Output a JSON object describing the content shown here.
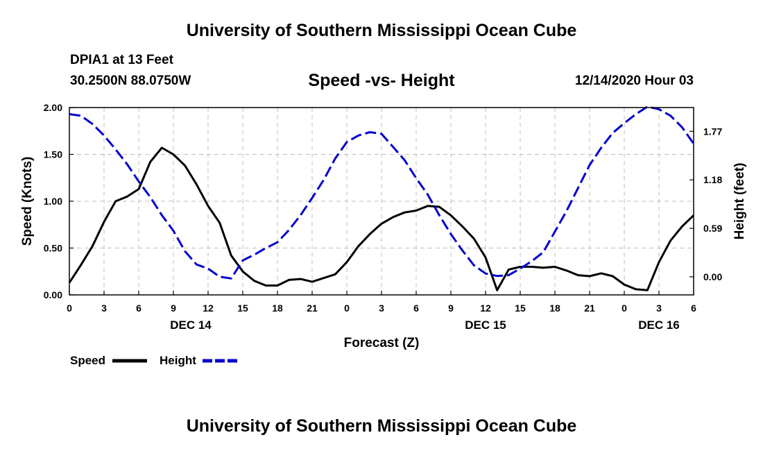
{
  "header": {
    "top_title": "University of Southern Mississippi Ocean Cube",
    "station": "DPIA1 at 13 Feet",
    "coords": "30.2500N 88.0750W",
    "chart_title": "Speed -vs- Height",
    "datetime": "12/14/2020 Hour 03",
    "bottom_title": "University of Southern Mississippi Ocean Cube"
  },
  "chart_data": {
    "type": "line",
    "title": "Speed -vs- Height",
    "xlabel": "Forecast (Z)",
    "ylabel": "Speed (Knots)",
    "y2label": "Height (feet)",
    "xlim": [
      0,
      54
    ],
    "ylim": [
      0,
      2
    ],
    "y2lim": [
      -0.22,
      2.06
    ],
    "grid": true,
    "x_ticks": [
      0,
      3,
      6,
      9,
      12,
      15,
      18,
      21,
      24,
      27,
      30,
      33,
      36,
      39,
      42,
      45,
      48,
      51,
      54
    ],
    "x_tick_labels": [
      "0",
      "3",
      "6",
      "9",
      "12",
      "15",
      "18",
      "21",
      "0",
      "3",
      "6",
      "9",
      "12",
      "15",
      "18",
      "21",
      "0",
      "3",
      "6"
    ],
    "y_ticks": [
      0,
      0.5,
      1.0,
      1.5,
      2.0
    ],
    "y_tick_labels": [
      "0.00",
      "0.50",
      "1.00",
      "1.50",
      "2.00"
    ],
    "y2_ticks": [
      0,
      0.59,
      1.18,
      1.77
    ],
    "y2_tick_labels": [
      "0.00",
      "0.59",
      "1.18",
      "1.77"
    ],
    "day_labels": [
      {
        "x": 10.5,
        "label": "DEC 14"
      },
      {
        "x": 36,
        "label": "DEC 15"
      },
      {
        "x": 51,
        "label": "DEC 16"
      }
    ],
    "legend_position": "bottom-left",
    "series": [
      {
        "name": "Speed",
        "axis": "left",
        "color": "#000000",
        "dash": "solid",
        "x": [
          0,
          1,
          2,
          3,
          4,
          5,
          6,
          7,
          8,
          9,
          10,
          11,
          12,
          13,
          14,
          15,
          16,
          17,
          18,
          19,
          20,
          21,
          22,
          23,
          24,
          25,
          26,
          27,
          28,
          29,
          30,
          31,
          32,
          33,
          34,
          35,
          36,
          37,
          38,
          39,
          40,
          41,
          42,
          43,
          44,
          45,
          46,
          47,
          48,
          49,
          50,
          51,
          52,
          53,
          54
        ],
        "values": [
          0.13,
          0.32,
          0.52,
          0.78,
          1.0,
          1.05,
          1.13,
          1.42,
          1.57,
          1.5,
          1.38,
          1.18,
          0.95,
          0.77,
          0.42,
          0.25,
          0.15,
          0.1,
          0.1,
          0.16,
          0.17,
          0.14,
          0.18,
          0.22,
          0.35,
          0.52,
          0.65,
          0.76,
          0.83,
          0.88,
          0.9,
          0.95,
          0.94,
          0.85,
          0.73,
          0.6,
          0.4,
          0.05,
          0.27,
          0.3,
          0.3,
          0.29,
          0.3,
          0.26,
          0.21,
          0.2,
          0.23,
          0.2,
          0.11,
          0.06,
          0.05,
          0.35,
          0.58,
          0.73,
          0.85
        ]
      },
      {
        "name": "Height",
        "axis": "right",
        "color": "#0000cc",
        "dash": "dashed",
        "x": [
          0,
          1,
          2,
          3,
          4,
          5,
          6,
          7,
          8,
          9,
          10,
          11,
          12,
          13,
          14,
          15,
          16,
          17,
          18,
          19,
          20,
          21,
          22,
          23,
          24,
          25,
          26,
          27,
          28,
          29,
          30,
          31,
          32,
          33,
          34,
          35,
          36,
          37,
          38,
          39,
          40,
          41,
          42,
          43,
          44,
          45,
          46,
          47,
          48,
          49,
          50,
          51,
          52,
          53,
          54
        ],
        "values": [
          1.98,
          1.96,
          1.86,
          1.72,
          1.55,
          1.37,
          1.16,
          0.97,
          0.75,
          0.56,
          0.31,
          0.15,
          0.1,
          0.0,
          -0.02,
          0.2,
          0.27,
          0.35,
          0.42,
          0.57,
          0.75,
          0.96,
          1.18,
          1.44,
          1.64,
          1.72,
          1.76,
          1.74,
          1.58,
          1.42,
          1.2,
          1.0,
          0.75,
          0.52,
          0.32,
          0.14,
          0.04,
          0.01,
          0.02,
          0.1,
          0.19,
          0.3,
          0.55,
          0.8,
          1.08,
          1.36,
          1.57,
          1.75,
          1.87,
          1.98,
          2.07,
          2.04,
          1.96,
          1.82,
          1.62
        ]
      }
    ]
  },
  "legend": {
    "speed_label": "Speed",
    "height_label": "Height"
  }
}
